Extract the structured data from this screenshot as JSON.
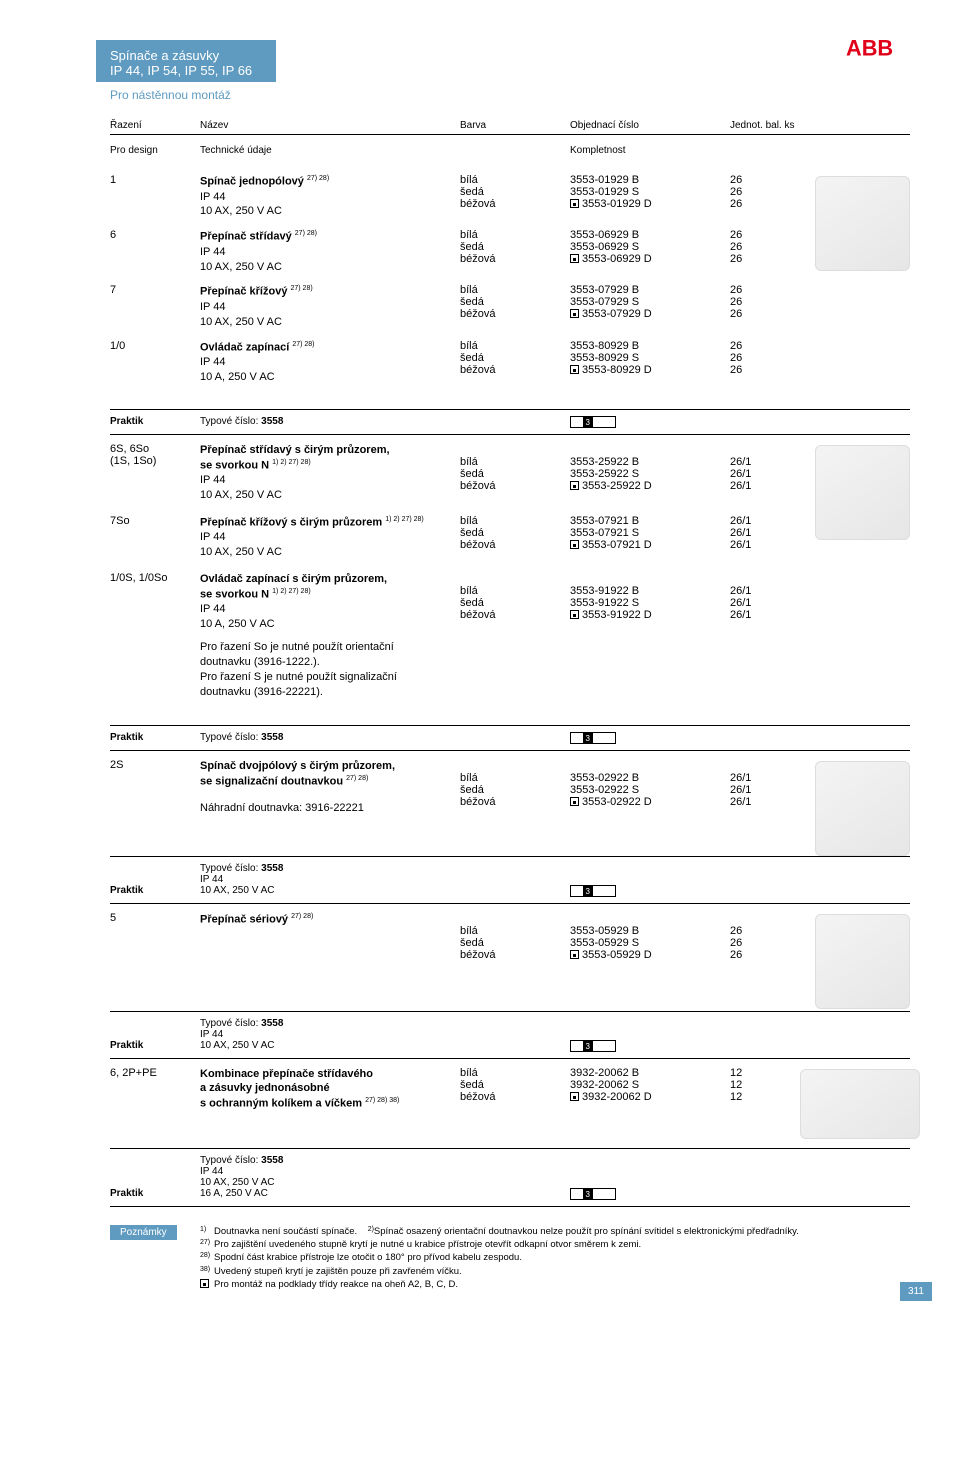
{
  "header": {
    "line1": "Spínače a zásuvky",
    "line2": "IP 44, IP 54, IP 55, IP 66",
    "sub": "Pro nástěnnou montáž"
  },
  "logo_text": "ABB",
  "cols": {
    "razeni": "Řazení",
    "nazev": "Název",
    "barva": "Barva",
    "obj": "Objednací číslo",
    "jed": "Jednot. bal. ks"
  },
  "prodesign": {
    "label": "Pro design",
    "tech": "Technické údaje",
    "kompl": "Kompletnost"
  },
  "sec1": [
    {
      "r": "1",
      "title": "Spínač jednopólový",
      "sup": "27) 28)",
      "l2": "IP 44",
      "l3": "10 AX, 250 V AC",
      "colors": [
        "bílá",
        "šedá",
        "béžová"
      ],
      "codes": [
        "3553-01929 B",
        "3553-01929 S",
        "3553-01929 D"
      ],
      "units": [
        "26",
        "26",
        "26"
      ],
      "disk": [
        false,
        false,
        true
      ]
    },
    {
      "r": "6",
      "title": "Přepínač střídavý",
      "sup": "27) 28)",
      "l2": "IP 44",
      "l3": "10 AX, 250 V AC",
      "colors": [
        "bílá",
        "šedá",
        "béžová"
      ],
      "codes": [
        "3553-06929 B",
        "3553-06929 S",
        "3553-06929 D"
      ],
      "units": [
        "26",
        "26",
        "26"
      ],
      "disk": [
        false,
        false,
        true
      ]
    },
    {
      "r": "7",
      "title": "Přepínač křížový",
      "sup": "27) 28)",
      "l2": "IP 44",
      "l3": "10 AX, 250 V AC",
      "colors": [
        "bílá",
        "šedá",
        "béžová"
      ],
      "codes": [
        "3553-07929 B",
        "3553-07929 S",
        "3553-07929 D"
      ],
      "units": [
        "26",
        "26",
        "26"
      ],
      "disk": [
        false,
        false,
        true
      ]
    },
    {
      "r": "1/0",
      "title": "Ovládač zapínací",
      "sup": "27) 28)",
      "l2": "IP 44",
      "l3": "10 A, 250 V AC",
      "colors": [
        "bílá",
        "šedá",
        "béžová"
      ],
      "codes": [
        "3553-80929 B",
        "3553-80929 S",
        "3553-80929 D"
      ],
      "units": [
        "26",
        "26",
        "26"
      ],
      "disk": [
        false,
        false,
        true
      ]
    }
  ],
  "praktik": {
    "label": "Praktik",
    "typ_pref": "Typové číslo:",
    "typ_val": "3558"
  },
  "ean": {
    "pre": "  ",
    "mid": "3",
    "post": "     "
  },
  "sec2": [
    {
      "r": "6S, 6So",
      "r2": "(1S, 1So)",
      "t1": "Přepínač střídavý s čirým průzorem,",
      "t2": "se svorkou N",
      "sup": "1) 2) 27) 28)",
      "l3": "IP 44",
      "l4": "10 AX, 250 V AC",
      "colors": [
        "bílá",
        "šedá",
        "béžová"
      ],
      "codes": [
        "3553-25922 B",
        "3553-25922 S",
        "3553-25922 D"
      ],
      "units": [
        "26/1",
        "26/1",
        "26/1"
      ],
      "disk": [
        false,
        false,
        true
      ]
    },
    {
      "r": "7So",
      "t1": "Přepínač křížový s čirým průzorem",
      "sup": "1) 2) 27) 28)",
      "l3": "IP 44",
      "l4": "10 AX, 250 V AC",
      "colors": [
        "bílá",
        "šedá",
        "béžová"
      ],
      "codes": [
        "3553-07921 B",
        "3553-07921 S",
        "3553-07921 D"
      ],
      "units": [
        "26/1",
        "26/1",
        "26/1"
      ],
      "disk": [
        false,
        false,
        true
      ]
    },
    {
      "r": "1/0S, 1/0So",
      "t1": "Ovládač zapínací s čirým průzorem,",
      "t2": "se svorkou N",
      "sup": "1) 2) 27) 28)",
      "l3": "IP 44",
      "l4": "10 A, 250 V AC",
      "colors": [
        "bílá",
        "šedá",
        "béžová"
      ],
      "codes": [
        "3553-91922 B",
        "3553-91922 S",
        "3553-91922 D"
      ],
      "units": [
        "26/1",
        "26/1",
        "26/1"
      ],
      "disk": [
        false,
        false,
        true
      ],
      "note1": "Pro řazení So je nutné použít orientační",
      "note2": "doutnavku (3916-1222.).",
      "note3": "Pro řazení S je nutné použít signalizační",
      "note4": "doutnavku (3916-22221)."
    }
  ],
  "sec3": {
    "r": "2S",
    "t1": "Spínač dvojpólový s čirým průzorem,",
    "t2": "se signalizační doutnavkou",
    "sup": "27) 28)",
    "l_extra": "Náhradní doutnavka: 3916-22221",
    "colors": [
      "bílá",
      "šedá",
      "béžová"
    ],
    "codes": [
      "3553-02922 B",
      "3553-02922 S",
      "3553-02922 D"
    ],
    "units": [
      "26/1",
      "26/1",
      "26/1"
    ],
    "disk": [
      false,
      false,
      true
    ]
  },
  "blk4_hdr": {
    "l1": "Typové číslo:",
    "v1": "3558",
    "l2": "IP 44",
    "l3": "10 AX, 250 V AC"
  },
  "sec4": {
    "r": "5",
    "t1": "Přepínač sériový",
    "sup": "27) 28)",
    "colors": [
      "bílá",
      "šedá",
      "béžová"
    ],
    "codes": [
      "3553-05929 B",
      "3553-05929 S",
      "3553-05929 D"
    ],
    "units": [
      "26",
      "26",
      "26"
    ],
    "disk": [
      false,
      false,
      true
    ]
  },
  "sec5": {
    "r": "6, 2P+PE",
    "t1": "Kombinace přepínače střídavého",
    "t2": "a zásuvky jednonásobné",
    "t3": "s ochranným kolíkem a víčkem",
    "sup": "27) 28) 38)",
    "colors": [
      "bílá",
      "šedá",
      "béžová"
    ],
    "codes": [
      "3932-20062 B",
      "3932-20062 S",
      "3932-20062 D"
    ],
    "units": [
      "12",
      "12",
      "12"
    ],
    "disk": [
      false,
      false,
      true
    ]
  },
  "blk6_hdr": {
    "l1": "Typové číslo:",
    "v1": "3558",
    "l2": "IP 44",
    "l3": "10 AX, 250 V AC",
    "l4": "16 A, 250 V AC"
  },
  "poznamky_label": "Poznámky",
  "footnotes": [
    {
      "n": "1)",
      "t": "Doutnavka není součástí spínače."
    },
    {
      "n": "2)",
      "t": "Spínač osazený orientační doutnavkou nelze použít pro spínání svítidel s elektronickými předřadníky."
    },
    {
      "n": "27)",
      "t": "Pro zajištění uvedeného stupně krytí je nutné u krabice přístroje otevřít odkapní otvor směrem k zemi."
    },
    {
      "n": "28)",
      "t": "Spodní část krabice přístroje lze otočit o 180° pro přívod kabelu zespodu."
    },
    {
      "n": "38)",
      "t": "Uvedený stupeň krytí je zajištěn pouze při zavřeném víčku."
    },
    {
      "n": "",
      "t": "Pro montáž na podklady třídy reakce na oheň A2, B, C, D.",
      "icon": true
    }
  ],
  "page_num": "311"
}
